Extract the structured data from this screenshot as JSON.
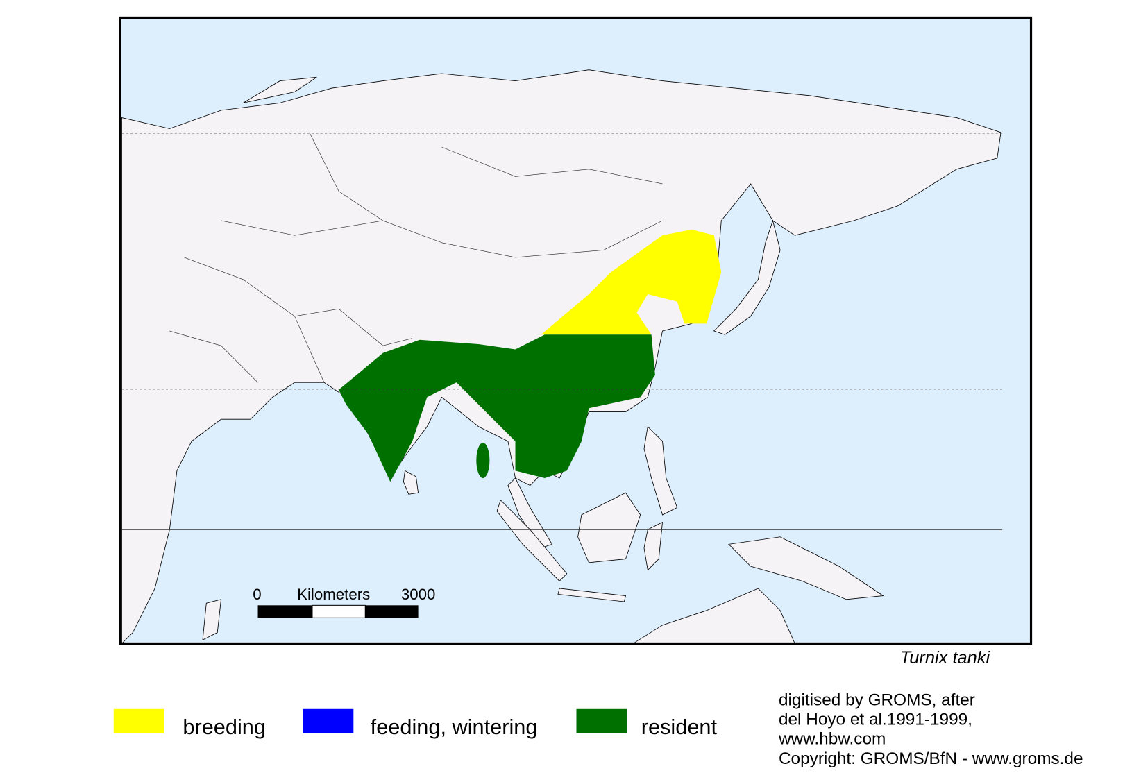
{
  "map": {
    "title": "Turnix tanki",
    "scale_bar": {
      "start": "0",
      "unit": "Kilometers",
      "end": "3000"
    }
  },
  "legend": [
    {
      "label": "breeding",
      "color": "#ffff00"
    },
    {
      "label": "feeding, wintering",
      "color": "#0000ff"
    },
    {
      "label": "resident",
      "color": "#007000"
    }
  ],
  "credits": [
    "digitised by GROMS, after",
    "del Hoyo et al.1991-1999,",
    "www.hbw.com",
    "Copyright: GROMS/BfN - www.groms.de"
  ]
}
